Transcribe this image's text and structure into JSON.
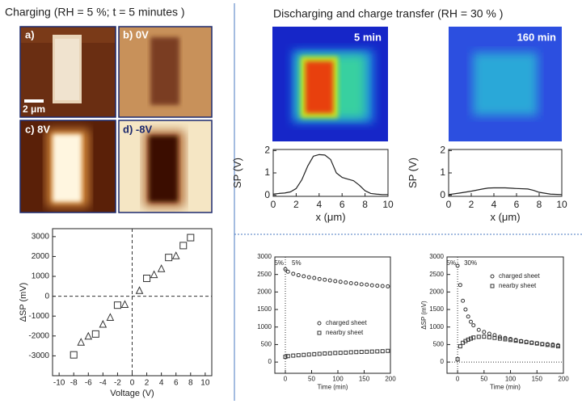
{
  "headings": {
    "left": "Charging (RH = 5 %; t = 5 minutes )",
    "right": "Discharging  and charge transfer (RH = 30 % )"
  },
  "afm_panels": {
    "a": "a)",
    "b": "b) 0V",
    "c": "c) 8V",
    "d": "d) -8V",
    "scale_bar": "2 μm"
  },
  "kpfm_maps": {
    "first": "5 min",
    "second": "160 min"
  },
  "chart_data": [
    {
      "type": "scatter",
      "x_label": "Voltage (V)",
      "y_label": "ΔSP (mV)",
      "xlim": [
        -10.9,
        10.9
      ],
      "ylim": [
        -4000,
        3400
      ],
      "xticks": [
        -10,
        -8,
        -6,
        -4,
        -2,
        0,
        2,
        4,
        6,
        8,
        10
      ],
      "yticks": [
        -3000,
        -2000,
        -1000,
        0,
        1000,
        2000,
        3000
      ],
      "ref_x": 0,
      "ref_y": 0,
      "ref_style": "dashed",
      "series": [
        {
          "marker": "triangle",
          "color": "#333333",
          "x": [
            -7,
            -6,
            -4,
            -3,
            -1,
            1,
            3,
            4,
            6
          ],
          "values": [
            -2300,
            -2000,
            -1400,
            -1050,
            -400,
            300,
            1100,
            1400,
            2050
          ]
        },
        {
          "marker": "square",
          "color": "#333333",
          "x": [
            -8,
            -5,
            -2,
            2,
            5,
            7,
            8
          ],
          "values": [
            -2950,
            -1900,
            -450,
            900,
            1950,
            2550,
            2950
          ]
        }
      ]
    },
    {
      "type": "line",
      "x_label": "x (μm)",
      "y_label": "SP (V)",
      "xlim": [
        0,
        10
      ],
      "ylim": [
        -0.05,
        2.05
      ],
      "xticks": [
        0,
        2,
        4,
        6,
        8,
        10
      ],
      "yticks": [
        0,
        1,
        2
      ],
      "series": [
        {
          "color": "#222222",
          "x": [
            0,
            0.5,
            1,
            1.5,
            2,
            2.5,
            3,
            3.5,
            4,
            4.5,
            5,
            5.5,
            6,
            6.5,
            7,
            7.5,
            8,
            8.5,
            9,
            9.5,
            10
          ],
          "values": [
            0.05,
            0.08,
            0.1,
            0.15,
            0.3,
            0.7,
            1.3,
            1.75,
            1.82,
            1.8,
            1.6,
            1.0,
            0.8,
            0.72,
            0.65,
            0.45,
            0.2,
            0.08,
            0.05,
            0.03,
            0.03
          ]
        }
      ]
    },
    {
      "type": "line",
      "x_label": "x (μm)",
      "y_label": "SP (V)",
      "xlim": [
        0,
        10
      ],
      "ylim": [
        -0.05,
        2.05
      ],
      "xticks": [
        0,
        2,
        4,
        6,
        8,
        10
      ],
      "yticks": [
        0,
        1,
        2
      ],
      "series": [
        {
          "color": "#222222",
          "x": [
            0,
            1,
            2,
            3,
            3.5,
            4,
            5,
            6,
            7,
            7.5,
            8,
            9,
            10
          ],
          "values": [
            0.03,
            0.1,
            0.18,
            0.28,
            0.32,
            0.33,
            0.33,
            0.3,
            0.28,
            0.22,
            0.13,
            0.05,
            0.03
          ]
        }
      ]
    },
    {
      "type": "scatter",
      "x_label": "Time (min)",
      "xlim": [
        -20,
        200
      ],
      "ylim": [
        -320,
        3000
      ],
      "xticks": [
        0,
        50,
        100,
        150,
        200
      ],
      "yticks": [
        0,
        500,
        1000,
        1500,
        2000,
        2500,
        3000
      ],
      "ref_x": 0,
      "ref_style": "dotted",
      "annotations": [
        "5%",
        "5%"
      ],
      "legend": "right",
      "series": [
        {
          "name": "charged sheet",
          "marker": "circle",
          "color": "#333333",
          "x": [
            0,
            5,
            15,
            25,
            35,
            45,
            55,
            65,
            75,
            85,
            95,
            105,
            115,
            125,
            135,
            145,
            155,
            165,
            175,
            185,
            195
          ],
          "values": [
            2650,
            2580,
            2520,
            2480,
            2450,
            2420,
            2400,
            2370,
            2350,
            2330,
            2310,
            2290,
            2270,
            2250,
            2240,
            2220,
            2210,
            2190,
            2180,
            2170,
            2160
          ]
        },
        {
          "name": "nearby sheet",
          "marker": "square",
          "color": "#333333",
          "x": [
            0,
            5,
            15,
            25,
            35,
            45,
            55,
            65,
            75,
            85,
            95,
            105,
            115,
            125,
            135,
            145,
            155,
            165,
            175,
            185,
            195
          ],
          "values": [
            150,
            170,
            185,
            195,
            205,
            215,
            225,
            235,
            245,
            250,
            260,
            265,
            270,
            280,
            285,
            290,
            295,
            300,
            305,
            310,
            320
          ]
        }
      ]
    },
    {
      "type": "scatter",
      "x_label": "Time (min)",
      "y_label": "ΔSP (mV)",
      "xlim": [
        -20,
        200
      ],
      "ylim": [
        -320,
        3000
      ],
      "xticks": [
        0,
        50,
        100,
        150,
        200
      ],
      "yticks": [
        0,
        500,
        1000,
        1500,
        2000,
        2500,
        3000
      ],
      "ref_x": 0,
      "ref_y": 0,
      "ref_style": "dotted",
      "annotations": [
        "5%",
        "30%"
      ],
      "legend": "upper right",
      "series": [
        {
          "name": "charged sheet",
          "marker": "circle",
          "color": "#333333",
          "x": [
            0,
            5,
            10,
            15,
            20,
            25,
            30,
            40,
            50,
            60,
            70,
            80,
            90,
            100,
            110,
            120,
            130,
            140,
            150,
            160,
            170,
            180,
            190
          ],
          "values": [
            2750,
            2200,
            1750,
            1500,
            1300,
            1150,
            1050,
            920,
            860,
            810,
            770,
            720,
            690,
            660,
            630,
            600,
            580,
            560,
            540,
            520,
            510,
            500,
            480
          ]
        },
        {
          "name": "nearby sheet",
          "marker": "square",
          "color": "#333333",
          "x": [
            0,
            5,
            10,
            15,
            20,
            25,
            30,
            40,
            50,
            60,
            70,
            80,
            90,
            100,
            110,
            120,
            130,
            140,
            150,
            160,
            170,
            180,
            190
          ],
          "values": [
            80,
            450,
            550,
            600,
            640,
            670,
            700,
            720,
            725,
            710,
            690,
            670,
            650,
            630,
            610,
            590,
            570,
            550,
            530,
            510,
            490,
            470,
            450
          ]
        }
      ]
    }
  ]
}
